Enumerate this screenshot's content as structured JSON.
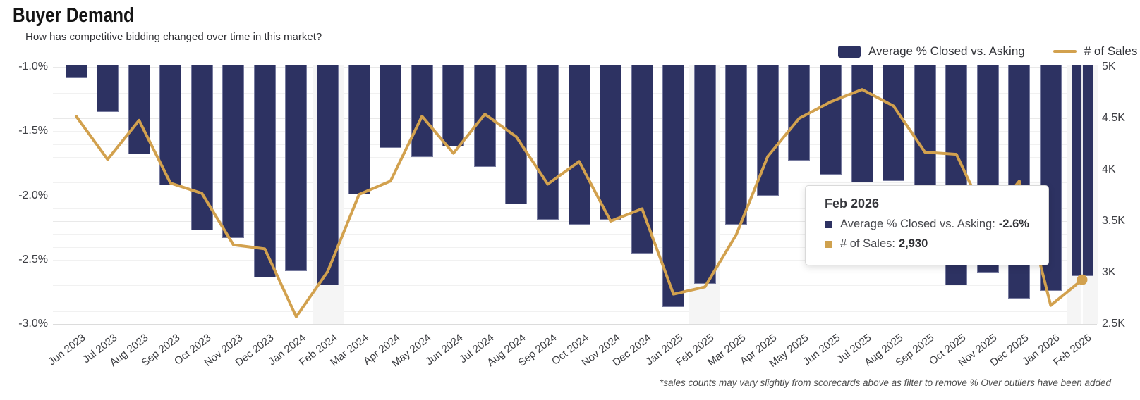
{
  "header": {
    "title": "Buyer Demand",
    "subtitle": "How has competitive bidding changed over time in this market?"
  },
  "legend": {
    "items": [
      {
        "label": "Average % Closed vs. Asking",
        "swatch": "square",
        "color": "#2d3262"
      },
      {
        "label": "# of Sales",
        "swatch": "line",
        "color": "#d2a14e"
      }
    ]
  },
  "axes": {
    "left_ticks": [
      "-1.0%",
      "-1.5%",
      "-2.0%",
      "-2.5%",
      "-3.0%"
    ],
    "right_ticks": [
      "5K",
      "4.5K",
      "4K",
      "3.5K",
      "3K",
      "2.5K"
    ]
  },
  "chart_data": {
    "type": "combo-bar-line",
    "categories": [
      "Jun 2023",
      "Jul 2023",
      "Aug 2023",
      "Sep 2023",
      "Oct 2023",
      "Nov 2023",
      "Dec 2023",
      "Jan 2024",
      "Feb 2024",
      "Mar 2024",
      "Apr 2024",
      "May 2024",
      "Jun 2024",
      "Jul 2024",
      "Aug 2024",
      "Sep 2024",
      "Oct 2024",
      "Nov 2024",
      "Dec 2024",
      "Jan 2025",
      "Feb 2025",
      "Mar 2025",
      "Apr 2025",
      "May 2025",
      "Jun 2025",
      "Jul 2025",
      "Aug 2025",
      "Sep 2025",
      "Oct 2025",
      "Nov 2025",
      "Dec 2025",
      "Jan 2026",
      "Feb 2026"
    ],
    "series": [
      {
        "name": "Average % Closed vs. Asking",
        "type": "bar",
        "axis": "left",
        "unit": "%",
        "color": "#2d3262",
        "values": [
          -1.09,
          -1.35,
          -1.68,
          -1.92,
          -2.27,
          -2.33,
          -2.64,
          -2.59,
          -2.7,
          -1.99,
          -1.63,
          -1.7,
          -1.62,
          -1.78,
          -2.07,
          -2.19,
          -2.23,
          -2.19,
          -2.45,
          -2.87,
          -2.69,
          -2.23,
          -2.0,
          -1.73,
          -1.84,
          -1.9,
          -1.89,
          -2.2,
          -2.7,
          -2.6,
          -2.8,
          -2.74,
          -2.63
        ]
      },
      {
        "name": "# of Sales",
        "type": "line",
        "axis": "right",
        "color": "#d2a14e",
        "values": [
          4520,
          4100,
          4480,
          3870,
          3770,
          3270,
          3230,
          2570,
          3010,
          3760,
          3890,
          4520,
          4160,
          4540,
          4320,
          3860,
          4080,
          3500,
          3620,
          2790,
          2860,
          3370,
          4130,
          4500,
          4660,
          4780,
          4620,
          4170,
          4150,
          3500,
          3890,
          2680,
          2930
        ]
      }
    ],
    "left_axis": {
      "min": -3.0,
      "max": -1.0,
      "tick_step": 0.5
    },
    "right_axis": {
      "min": 2500,
      "max": 5000,
      "tick_step": 500
    },
    "grid": "horizontal, minor lines every 0.125K / 0.0625%",
    "legend_position": "top-right",
    "highlighted_category": "Feb 2026",
    "highlight_bands_categories": [
      "Feb 2024",
      "Feb 2025",
      "Feb 2026"
    ],
    "occlusion_note": "Sep 2025 bar bottom and Nov 2025 line point hidden behind tooltip; values estimated"
  },
  "tooltip": {
    "title": "Feb 2026",
    "rows": [
      {
        "label": "Average % Closed vs. Asking:",
        "value": "-2.6%",
        "bullet_color": "#2d3262"
      },
      {
        "label": "# of Sales:",
        "value": "2,930",
        "bullet_color": "#cfa14e"
      }
    ]
  },
  "footnote": "*sales counts may vary slightly from scorecards above as filter to remove % Over outliers have been added"
}
